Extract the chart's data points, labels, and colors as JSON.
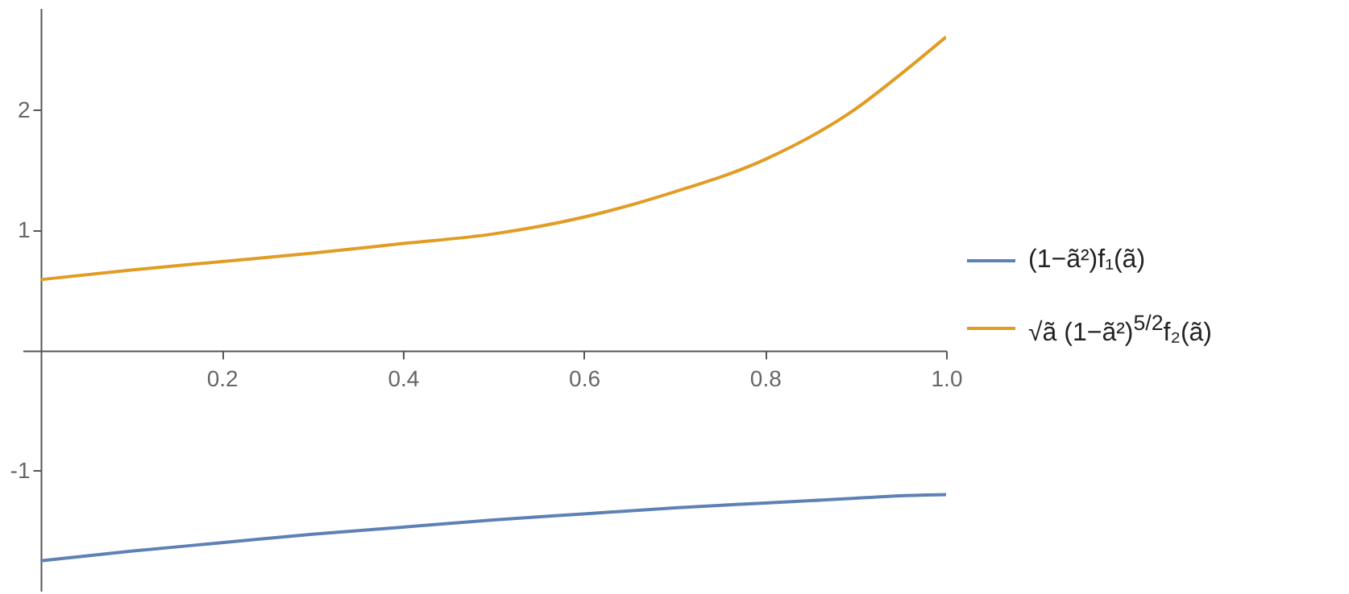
{
  "chart_data": {
    "type": "line",
    "x": [
      0,
      0.1,
      0.2,
      0.3,
      0.4,
      0.5,
      0.6,
      0.7,
      0.8,
      0.9,
      0.95,
      1.0
    ],
    "series": [
      {
        "name": "(1−ã²)f₁(ã)",
        "color": "#5e81b5",
        "values": [
          -1.75,
          -1.67,
          -1.6,
          -1.53,
          -1.47,
          -1.41,
          -1.36,
          -1.31,
          -1.27,
          -1.23,
          -1.21,
          -1.2
        ]
      },
      {
        "name": "√ã (1−ã²)$^{5/2}$f₂(ã)",
        "color": "#e19c24",
        "values": [
          0.59,
          0.67,
          0.74,
          0.81,
          0.89,
          0.97,
          1.11,
          1.32,
          1.59,
          2.01,
          2.3,
          2.61
        ]
      }
    ],
    "xlim": [
      -0.02,
      1.0
    ],
    "xticks": [
      0.2,
      0.4,
      0.6,
      {
        "value": 0.8,
        "label": "0.8"
      },
      {
        "value": 1.0,
        "label": "1.0"
      }
    ],
    "ylim": [
      -2.0,
      2.85
    ],
    "yticks": [
      -1,
      1,
      2
    ],
    "legend": "right",
    "grid": false,
    "marker": "none",
    "line_style": "solid"
  }
}
